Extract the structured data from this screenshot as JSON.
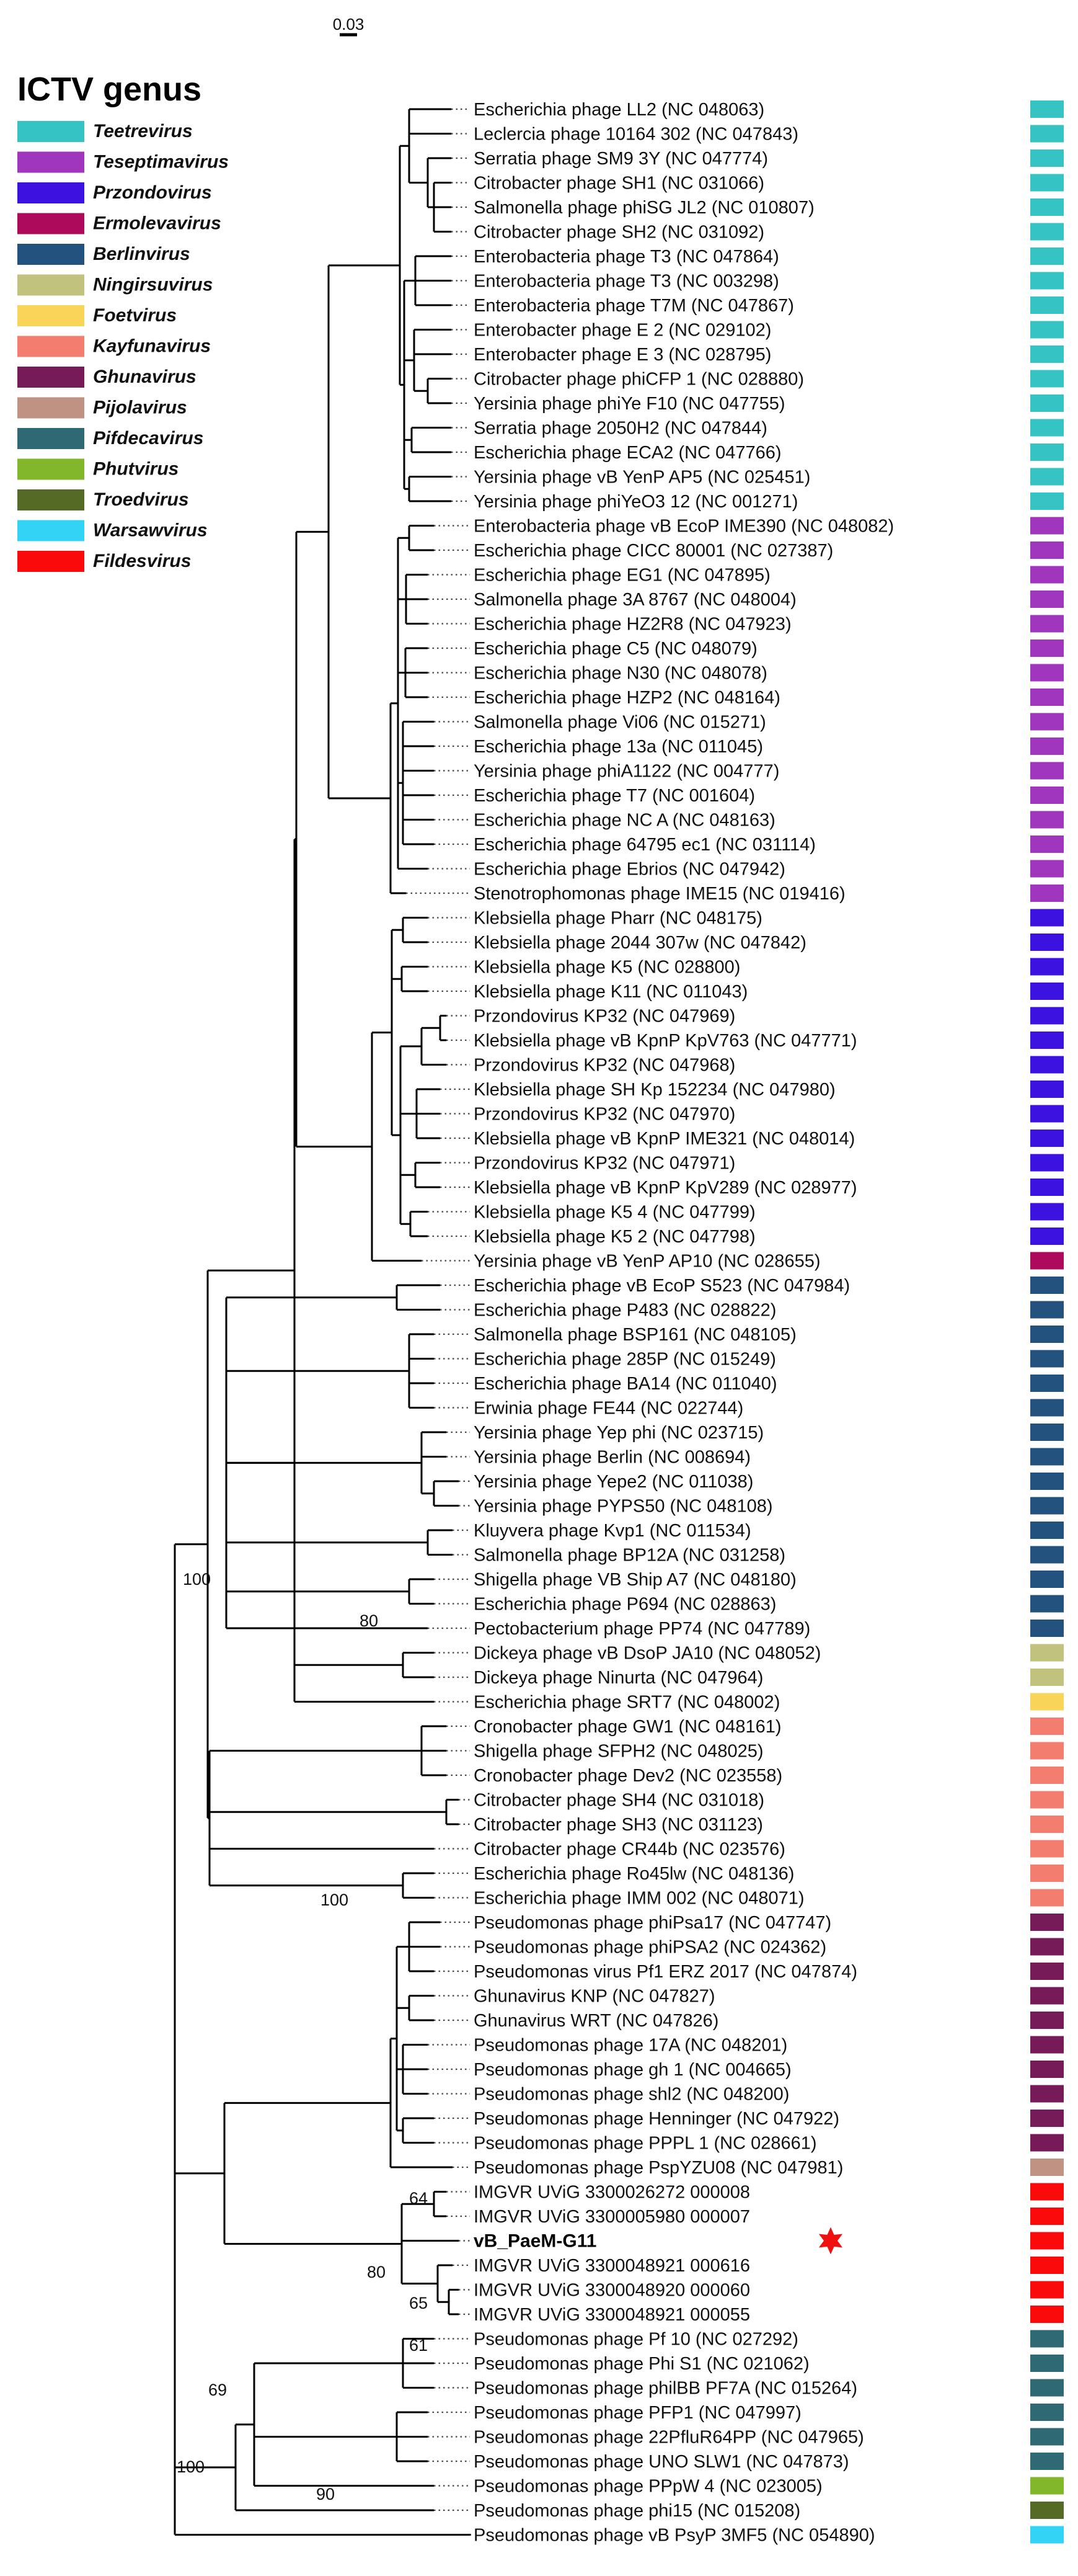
{
  "scale_bar": {
    "label": "0.03"
  },
  "legend": {
    "title": "ICTV genus",
    "items": [
      {
        "name": "Teetrevirus",
        "color": "#35c3c3"
      },
      {
        "name": "Teseptimavirus",
        "color": "#a035be"
      },
      {
        "name": "Przondovirus",
        "color": "#3b12e0"
      },
      {
        "name": "Ermolevavirus",
        "color": "#ad0a5b"
      },
      {
        "name": "Berlinvirus",
        "color": "#23527e"
      },
      {
        "name": "Ningirsuvirus",
        "color": "#c2c27f"
      },
      {
        "name": "Foetvirus",
        "color": "#f8d558"
      },
      {
        "name": "Kayfunavirus",
        "color": "#f37e70"
      },
      {
        "name": "Ghunavirus",
        "color": "#761a58"
      },
      {
        "name": "Pijolavirus",
        "color": "#bf9284"
      },
      {
        "name": "Pifdecavirus",
        "color": "#2f6a74"
      },
      {
        "name": "Phutvirus",
        "color": "#82b62b"
      },
      {
        "name": "Troedvirus",
        "color": "#556b25"
      },
      {
        "name": "Warsawvirus",
        "color": "#33d3f5"
      },
      {
        "name": "Fildesvirus",
        "color": "#fa0a0a"
      }
    ]
  },
  "leaves": [
    {
      "label": "Escherichia phage LL2 (NC 048063)",
      "genus": "Teetrevirus"
    },
    {
      "label": "Leclercia phage 10164 302 (NC 047843)",
      "genus": "Teetrevirus"
    },
    {
      "label": "Serratia phage SM9 3Y (NC 047774)",
      "genus": "Teetrevirus"
    },
    {
      "label": "Citrobacter phage SH1 (NC 031066)",
      "genus": "Teetrevirus"
    },
    {
      "label": "Salmonella phage phiSG JL2 (NC 010807)",
      "genus": "Teetrevirus"
    },
    {
      "label": "Citrobacter phage SH2 (NC 031092)",
      "genus": "Teetrevirus"
    },
    {
      "label": "Enterobacteria phage T3 (NC 047864)",
      "genus": "Teetrevirus"
    },
    {
      "label": "Enterobacteria phage T3 (NC 003298)",
      "genus": "Teetrevirus"
    },
    {
      "label": "Enterobacteria phage T7M (NC 047867)",
      "genus": "Teetrevirus"
    },
    {
      "label": "Enterobacter phage E 2 (NC 029102)",
      "genus": "Teetrevirus"
    },
    {
      "label": "Enterobacter phage E 3 (NC 028795)",
      "genus": "Teetrevirus"
    },
    {
      "label": "Citrobacter phage phiCFP 1 (NC 028880)",
      "genus": "Teetrevirus"
    },
    {
      "label": "Yersinia phage phiYe F10 (NC 047755)",
      "genus": "Teetrevirus"
    },
    {
      "label": "Serratia phage 2050H2 (NC 047844)",
      "genus": "Teetrevirus"
    },
    {
      "label": "Escherichia phage ECA2 (NC 047766)",
      "genus": "Teetrevirus"
    },
    {
      "label": "Yersinia phage vB YenP AP5 (NC 025451)",
      "genus": "Teetrevirus"
    },
    {
      "label": "Yersinia phage phiYeO3 12 (NC 001271)",
      "genus": "Teetrevirus"
    },
    {
      "label": "Enterobacteria phage vB EcoP IME390 (NC 048082)",
      "genus": "Teseptimavirus"
    },
    {
      "label": "Escherichia phage CICC 80001 (NC 027387)",
      "genus": "Teseptimavirus"
    },
    {
      "label": "Escherichia phage EG1 (NC 047895)",
      "genus": "Teseptimavirus"
    },
    {
      "label": "Salmonella phage 3A 8767 (NC 048004)",
      "genus": "Teseptimavirus"
    },
    {
      "label": "Escherichia phage HZ2R8 (NC 047923)",
      "genus": "Teseptimavirus"
    },
    {
      "label": "Escherichia phage C5 (NC 048079)",
      "genus": "Teseptimavirus"
    },
    {
      "label": "Escherichia phage N30 (NC 048078)",
      "genus": "Teseptimavirus"
    },
    {
      "label": "Escherichia phage HZP2 (NC 048164)",
      "genus": "Teseptimavirus"
    },
    {
      "label": "Salmonella phage Vi06 (NC 015271)",
      "genus": "Teseptimavirus"
    },
    {
      "label": "Escherichia phage 13a (NC 011045)",
      "genus": "Teseptimavirus"
    },
    {
      "label": "Yersinia phage phiA1122 (NC 004777)",
      "genus": "Teseptimavirus"
    },
    {
      "label": "Escherichia phage T7 (NC 001604)",
      "genus": "Teseptimavirus"
    },
    {
      "label": "Escherichia phage NC A (NC 048163)",
      "genus": "Teseptimavirus"
    },
    {
      "label": "Escherichia phage 64795 ec1 (NC 031114)",
      "genus": "Teseptimavirus"
    },
    {
      "label": "Escherichia phage Ebrios (NC 047942)",
      "genus": "Teseptimavirus"
    },
    {
      "label": "Stenotrophomonas phage IME15 (NC 019416)",
      "genus": "Teseptimavirus"
    },
    {
      "label": "Klebsiella phage Pharr (NC 048175)",
      "genus": "Przondovirus"
    },
    {
      "label": "Klebsiella phage 2044 307w (NC 047842)",
      "genus": "Przondovirus"
    },
    {
      "label": "Klebsiella phage K5 (NC 028800)",
      "genus": "Przondovirus"
    },
    {
      "label": "Klebsiella phage K11 (NC 011043)",
      "genus": "Przondovirus"
    },
    {
      "label": "Przondovirus KP32 (NC 047969)",
      "genus": "Przondovirus"
    },
    {
      "label": "Klebsiella phage vB KpnP KpV763 (NC 047771)",
      "genus": "Przondovirus"
    },
    {
      "label": "Przondovirus KP32 (NC 047968)",
      "genus": "Przondovirus"
    },
    {
      "label": "Klebsiella phage SH Kp 152234 (NC 047980)",
      "genus": "Przondovirus"
    },
    {
      "label": "Przondovirus KP32 (NC 047970)",
      "genus": "Przondovirus"
    },
    {
      "label": "Klebsiella phage vB KpnP IME321 (NC 048014)",
      "genus": "Przondovirus"
    },
    {
      "label": "Przondovirus KP32 (NC 047971)",
      "genus": "Przondovirus"
    },
    {
      "label": "Klebsiella phage vB KpnP KpV289 (NC 028977)",
      "genus": "Przondovirus"
    },
    {
      "label": "Klebsiella phage K5 4 (NC 047799)",
      "genus": "Przondovirus"
    },
    {
      "label": "Klebsiella phage K5 2 (NC 047798)",
      "genus": "Przondovirus"
    },
    {
      "label": "Yersinia phage vB YenP AP10 (NC 028655)",
      "genus": "Ermolevavirus"
    },
    {
      "label": "Escherichia phage vB EcoP S523 (NC 047984)",
      "genus": "Berlinvirus"
    },
    {
      "label": "Escherichia phage P483 (NC 028822)",
      "genus": "Berlinvirus"
    },
    {
      "label": "Salmonella phage BSP161 (NC 048105)",
      "genus": "Berlinvirus"
    },
    {
      "label": "Escherichia phage 285P (NC 015249)",
      "genus": "Berlinvirus"
    },
    {
      "label": "Escherichia phage BA14 (NC 011040)",
      "genus": "Berlinvirus"
    },
    {
      "label": "Erwinia phage FE44 (NC 022744)",
      "genus": "Berlinvirus"
    },
    {
      "label": "Yersinia phage Yep phi (NC 023715)",
      "genus": "Berlinvirus"
    },
    {
      "label": "Yersinia phage Berlin (NC 008694)",
      "genus": "Berlinvirus"
    },
    {
      "label": "Yersinia phage Yepe2 (NC 011038)",
      "genus": "Berlinvirus"
    },
    {
      "label": "Yersinia phage PYPS50 (NC 048108)",
      "genus": "Berlinvirus"
    },
    {
      "label": "Kluyvera phage Kvp1 (NC 011534)",
      "genus": "Berlinvirus"
    },
    {
      "label": "Salmonella phage BP12A (NC 031258)",
      "genus": "Berlinvirus"
    },
    {
      "label": "Shigella phage VB Ship A7 (NC 048180)",
      "genus": "Berlinvirus"
    },
    {
      "label": "Escherichia phage P694 (NC 028863)",
      "genus": "Berlinvirus"
    },
    {
      "label": "Pectobacterium phage PP74 (NC 047789)",
      "genus": "Berlinvirus"
    },
    {
      "label": "Dickeya phage vB DsoP JA10 (NC 048052)",
      "genus": "Ningirsuvirus"
    },
    {
      "label": "Dickeya phage Ninurta (NC 047964)",
      "genus": "Ningirsuvirus"
    },
    {
      "label": "Escherichia phage SRT7 (NC 048002)",
      "genus": "Foetvirus"
    },
    {
      "label": "Cronobacter phage GW1 (NC 048161)",
      "genus": "Kayfunavirus"
    },
    {
      "label": "Shigella phage SFPH2 (NC 048025)",
      "genus": "Kayfunavirus"
    },
    {
      "label": "Cronobacter phage Dev2 (NC 023558)",
      "genus": "Kayfunavirus"
    },
    {
      "label": "Citrobacter phage SH4 (NC 031018)",
      "genus": "Kayfunavirus"
    },
    {
      "label": "Citrobacter phage SH3 (NC 031123)",
      "genus": "Kayfunavirus"
    },
    {
      "label": "Citrobacter phage CR44b (NC 023576)",
      "genus": "Kayfunavirus"
    },
    {
      "label": "Escherichia phage Ro45lw (NC 048136)",
      "genus": "Kayfunavirus"
    },
    {
      "label": "Escherichia phage IMM 002 (NC 048071)",
      "genus": "Kayfunavirus"
    },
    {
      "label": "Pseudomonas phage phiPsa17 (NC 047747)",
      "genus": "Ghunavirus"
    },
    {
      "label": "Pseudomonas phage phiPSA2 (NC 024362)",
      "genus": "Ghunavirus"
    },
    {
      "label": "Pseudomonas virus Pf1 ERZ 2017 (NC 047874)",
      "genus": "Ghunavirus"
    },
    {
      "label": "Ghunavirus KNP (NC 047827)",
      "genus": "Ghunavirus"
    },
    {
      "label": "Ghunavirus WRT (NC 047826)",
      "genus": "Ghunavirus"
    },
    {
      "label": "Pseudomonas phage 17A (NC 048201)",
      "genus": "Ghunavirus"
    },
    {
      "label": "Pseudomonas phage gh 1 (NC 004665)",
      "genus": "Ghunavirus"
    },
    {
      "label": "Pseudomonas phage shl2 (NC 048200)",
      "genus": "Ghunavirus"
    },
    {
      "label": "Pseudomonas phage Henninger (NC 047922)",
      "genus": "Ghunavirus"
    },
    {
      "label": "Pseudomonas phage PPPL 1 (NC 028661)",
      "genus": "Ghunavirus"
    },
    {
      "label": "Pseudomonas phage PspYZU08 (NC 047981)",
      "genus": "Pijolavirus"
    },
    {
      "label": "IMGVR UViG 3300026272 000008",
      "genus": "Fildesvirus"
    },
    {
      "label": "IMGVR UViG 3300005980 000007",
      "genus": "Fildesvirus"
    },
    {
      "label": "vB_PaeM-G11",
      "genus": "Fildesvirus",
      "bold": true,
      "star": true
    },
    {
      "label": "IMGVR UViG 3300048921 000616",
      "genus": "Fildesvirus"
    },
    {
      "label": "IMGVR UViG 3300048920 000060",
      "genus": "Fildesvirus"
    },
    {
      "label": "IMGVR UViG 3300048921 000055",
      "genus": "Fildesvirus"
    },
    {
      "label": "Pseudomonas phage Pf 10 (NC 027292)",
      "genus": "Pifdecavirus"
    },
    {
      "label": "Pseudomonas phage Phi S1 (NC 021062)",
      "genus": "Pifdecavirus"
    },
    {
      "label": "Pseudomonas phage philBB PF7A (NC 015264)",
      "genus": "Pifdecavirus"
    },
    {
      "label": "Pseudomonas phage PFP1 (NC 047997)",
      "genus": "Pifdecavirus"
    },
    {
      "label": "Pseudomonas phage 22PfluR64PP (NC 047965)",
      "genus": "Pifdecavirus"
    },
    {
      "label": "Pseudomonas phage UNO SLW1 (NC 047873)",
      "genus": "Pifdecavirus"
    },
    {
      "label": "Pseudomonas phage PPpW 4 (NC 023005)",
      "genus": "Phutvirus"
    },
    {
      "label": "Pseudomonas phage phi15 (NC 015208)",
      "genus": "Troedvirus"
    },
    {
      "label": "Pseudomonas phage vB PsyP 3MF5 (NC 054890)",
      "genus": "Warsawvirus"
    }
  ],
  "bootstrap_labels": [
    "100",
    "80",
    "100",
    "64",
    "80",
    "65",
    "61",
    "69",
    "100",
    "90"
  ]
}
